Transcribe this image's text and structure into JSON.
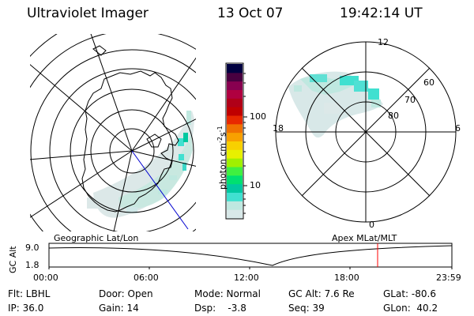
{
  "header": {
    "instrument": "Ultraviolet Imager",
    "date": "13 Oct 07",
    "time": "19:42:14 UT"
  },
  "colorbar": {
    "unit_label": "photon cm",
    "unit_exp1": "-2",
    "unit_s": "s",
    "unit_exp2": "-1",
    "ticks": [
      "100",
      "10"
    ],
    "colors": [
      "#d8e8e8",
      "#bfe8e0",
      "#40e0d0",
      "#00c8a0",
      "#00e070",
      "#40f040",
      "#a0f000",
      "#e8f000",
      "#f8d000",
      "#f8a000",
      "#f07000",
      "#e82800",
      "#c00000",
      "#b00018",
      "#b00040",
      "#880050",
      "#480040",
      "#000040"
    ]
  },
  "left_map": {
    "label": "Geographic Lat/Lon"
  },
  "right_map": {
    "label": "Apex MLat/MLT",
    "lat_labels": [
      "60",
      "70",
      "80"
    ],
    "mlt_labels": [
      "12",
      "18",
      "6",
      "0"
    ]
  },
  "altitude_strip": {
    "ylabel": "GC Alt",
    "yticks": [
      "9.0",
      "1.8"
    ],
    "xticks": [
      "00:00",
      "06:00",
      "12:00",
      "18:00",
      "23:59"
    ],
    "marker_color": "#ff0000"
  },
  "status": {
    "filter": "Flt: LBHL",
    "ip": "IP: 36.0",
    "door": "Door: Open",
    "gain": "Gain: 14",
    "mode": "Mode: Normal",
    "dsp": "Dsp:    -3.8",
    "gc_alt": "GC Alt: 7.6 Re",
    "seq": "Seq: 39",
    "glat": "GLat: -80.6",
    "glon": "GLon:  40.2"
  }
}
